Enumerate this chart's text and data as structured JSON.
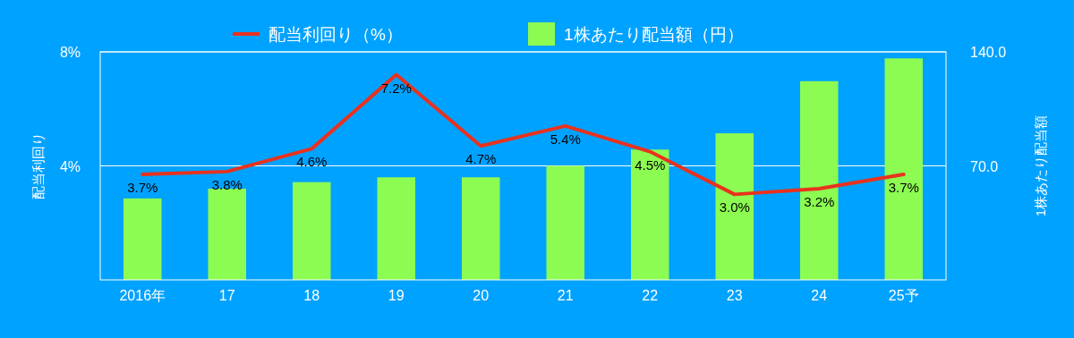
{
  "chart_data": {
    "type": "bar",
    "categories": [
      "2016年",
      "17",
      "18",
      "19",
      "20",
      "21",
      "22",
      "23",
      "24",
      "25予"
    ],
    "ylabel": "配当利回り",
    "y2label": "1株あたり配当額",
    "ylim": [
      0,
      8
    ],
    "yticks": [
      {
        "value": 4,
        "label": "4%"
      },
      {
        "value": 8,
        "label": "8%"
      }
    ],
    "y2lim": [
      0,
      140
    ],
    "y2ticks": [
      {
        "value": 70,
        "label": "70.0"
      },
      {
        "value": 140,
        "label": "140.0"
      }
    ],
    "grid": "y",
    "legend": "top",
    "series": [
      {
        "name": "配当利回り（%）",
        "type": "line",
        "color": "#e8321e",
        "values": [
          3.7,
          3.8,
          4.6,
          7.2,
          4.7,
          5.4,
          4.5,
          3.0,
          3.2,
          3.7
        ],
        "value_labels": [
          "3.7%",
          "3.8%",
          "4.6%",
          "7.2%",
          "4.7%",
          "5.4%",
          "4.5%",
          "3.0%",
          "3.2%",
          "3.7%"
        ]
      },
      {
        "name": "1株あたり配当額（円）",
        "axis": "y2",
        "color": "#8cfb52",
        "values": [
          50,
          56,
          60,
          63,
          63,
          70,
          80,
          90,
          122,
          136
        ]
      }
    ]
  }
}
